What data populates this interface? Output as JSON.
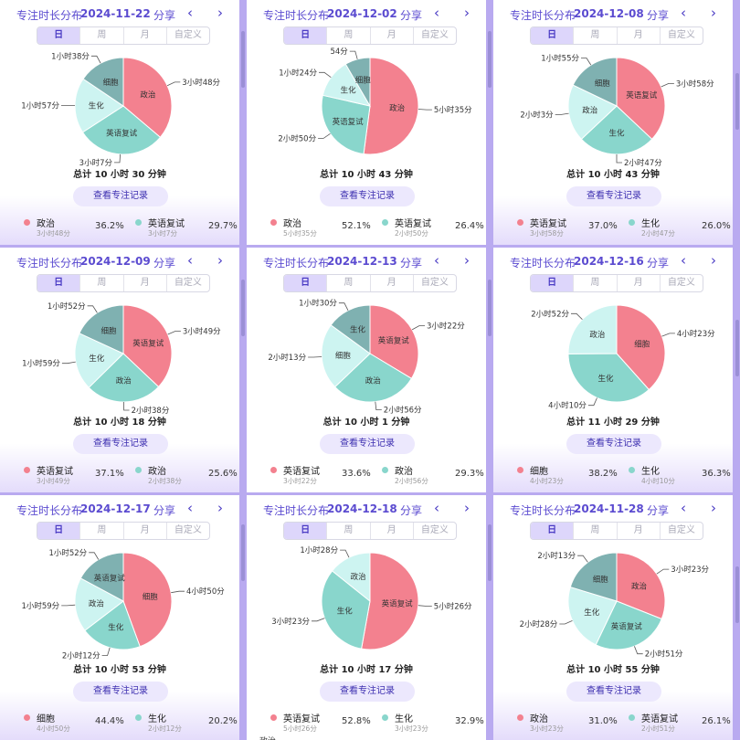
{
  "labels": {
    "title": "专注时长分布",
    "share": "分享",
    "prev": "‹",
    "next": "›",
    "view_records": "查看专注记录"
  },
  "tabs": [
    "日",
    "周",
    "月",
    "自定义"
  ],
  "colors": {
    "红": "#f3818f",
    "青": "#89d6cc",
    "浅": "#cdf4f1",
    "深": "#7fb1b1",
    "accent": "#4a3bc4"
  },
  "panels": [
    {
      "date": "2024-11-22",
      "total": "总计 10 小时 30 分钟",
      "slices": [
        {
          "name": "政治",
          "duration": "3小时48分",
          "value": 228,
          "color": "红"
        },
        {
          "name": "英语复试",
          "duration": "3小时7分",
          "value": 187,
          "color": "青"
        },
        {
          "name": "生化",
          "duration": "1小时57分",
          "value": 117,
          "color": "浅"
        },
        {
          "name": "细胞",
          "duration": "1小时38分",
          "value": 98,
          "color": "深"
        }
      ],
      "legend": [
        {
          "name": "政治",
          "duration": "3小时48分",
          "percent": "36.2%",
          "color": "红"
        },
        {
          "name": "英语复试",
          "duration": "3小时7分",
          "percent": "29.7%",
          "color": "青"
        }
      ]
    },
    {
      "date": "2024-12-02",
      "total": "总计 10 小时 43 分钟",
      "slices": [
        {
          "name": "政治",
          "duration": "5小时35分",
          "value": 335,
          "color": "红"
        },
        {
          "name": "英语复试",
          "duration": "2小时50分",
          "value": 170,
          "color": "青"
        },
        {
          "name": "生化",
          "duration": "1小时24分",
          "value": 84,
          "color": "浅"
        },
        {
          "name": "细胞",
          "duration": "54分",
          "value": 54,
          "color": "深"
        }
      ],
      "legend": [
        {
          "name": "政治",
          "duration": "5小时35分",
          "percent": "52.1%",
          "color": "红"
        },
        {
          "name": "英语复试",
          "duration": "2小时50分",
          "percent": "26.4%",
          "color": "青"
        }
      ]
    },
    {
      "date": "2024-12-08",
      "total": "总计 10 小时 43 分钟",
      "slices": [
        {
          "name": "英语复试",
          "duration": "3小时58分",
          "value": 238,
          "color": "红"
        },
        {
          "name": "生化",
          "duration": "2小时47分",
          "value": 167,
          "color": "青"
        },
        {
          "name": "政治",
          "duration": "2小时3分",
          "value": 123,
          "color": "浅"
        },
        {
          "name": "细胞",
          "duration": "1小时55分",
          "value": 115,
          "color": "深"
        }
      ],
      "legend": [
        {
          "name": "英语复试",
          "duration": "3小时58分",
          "percent": "37.0%",
          "color": "红"
        },
        {
          "name": "生化",
          "duration": "2小时47分",
          "percent": "26.0%",
          "color": "青"
        }
      ]
    },
    {
      "date": "2024-12-09",
      "total": "总计 10 小时 18 分钟",
      "slices": [
        {
          "name": "英语复试",
          "duration": "3小时49分",
          "value": 229,
          "color": "红"
        },
        {
          "name": "政治",
          "duration": "2小时38分",
          "value": 158,
          "color": "青"
        },
        {
          "name": "生化",
          "duration": "1小时59分",
          "value": 119,
          "color": "浅"
        },
        {
          "name": "细胞",
          "duration": "1小时52分",
          "value": 112,
          "color": "深"
        }
      ],
      "legend": [
        {
          "name": "英语复试",
          "duration": "3小时49分",
          "percent": "37.1%",
          "color": "红"
        },
        {
          "name": "政治",
          "duration": "2小时38分",
          "percent": "25.6%",
          "color": "青"
        }
      ]
    },
    {
      "date": "2024-12-13",
      "total": "总计 10 小时 1 分钟",
      "slices": [
        {
          "name": "英语复试",
          "duration": "3小时22分",
          "value": 202,
          "color": "红"
        },
        {
          "name": "政治",
          "duration": "2小时56分",
          "value": 176,
          "color": "青"
        },
        {
          "name": "细胞",
          "duration": "2小时13分",
          "value": 133,
          "color": "浅"
        },
        {
          "name": "生化",
          "duration": "1小时30分",
          "value": 90,
          "color": "深"
        }
      ],
      "legend": [
        {
          "name": "英语复试",
          "duration": "3小时22分",
          "percent": "33.6%",
          "color": "红"
        },
        {
          "name": "政治",
          "duration": "2小时56分",
          "percent": "29.3%",
          "color": "青"
        }
      ]
    },
    {
      "date": "2024-12-16",
      "total": "总计 11 小时 29 分钟",
      "slices": [
        {
          "name": "细胞",
          "duration": "4小时23分",
          "value": 263,
          "color": "红"
        },
        {
          "name": "生化",
          "duration": "4小时10分",
          "value": 250,
          "color": "青"
        },
        {
          "name": "政治",
          "duration": "2小时52分",
          "value": 172,
          "color": "浅"
        }
      ],
      "legend": [
        {
          "name": "细胞",
          "duration": "4小时23分",
          "percent": "38.2%",
          "color": "红"
        },
        {
          "name": "生化",
          "duration": "4小时10分",
          "percent": "36.3%",
          "color": "青"
        }
      ]
    },
    {
      "date": "2024-12-17",
      "total": "总计 10 小时 53 分钟",
      "slices": [
        {
          "name": "细胞",
          "duration": "4小时50分",
          "value": 290,
          "color": "红"
        },
        {
          "name": "生化",
          "duration": "2小时12分",
          "value": 132,
          "color": "青"
        },
        {
          "name": "政治",
          "duration": "1小时59分",
          "value": 119,
          "color": "浅"
        },
        {
          "name": "英语复试",
          "duration": "1小时52分",
          "value": 112,
          "color": "深"
        }
      ],
      "legend": [
        {
          "name": "细胞",
          "duration": "4小时50分",
          "percent": "44.4%",
          "color": "红"
        },
        {
          "name": "生化",
          "duration": "2小时12分",
          "percent": "20.2%",
          "color": "青"
        }
      ]
    },
    {
      "date": "2024-12-18",
      "total": "总计 10 小时 17 分钟",
      "slices": [
        {
          "name": "英语复试",
          "duration": "5小时26分",
          "value": 326,
          "color": "红"
        },
        {
          "name": "生化",
          "duration": "3小时23分",
          "value": 203,
          "color": "青"
        },
        {
          "name": "政治",
          "duration": "1小时28分",
          "value": 88,
          "color": "浅"
        }
      ],
      "legend": [
        {
          "name": "英语复试",
          "duration": "5小时26分",
          "percent": "52.8%",
          "color": "红"
        },
        {
          "name": "生化",
          "duration": "3小时23分",
          "percent": "32.9%",
          "color": "青"
        }
      ],
      "peek": "政治"
    },
    {
      "date": "2024-11-28",
      "total": "总计 10 小时 55 分钟",
      "slices": [
        {
          "name": "政治",
          "duration": "3小时23分",
          "value": 203,
          "color": "红"
        },
        {
          "name": "英语复试",
          "duration": "2小时51分",
          "value": 171,
          "color": "青"
        },
        {
          "name": "生化",
          "duration": "2小时28分",
          "value": 148,
          "color": "浅"
        },
        {
          "name": "细胞",
          "duration": "2小时13分",
          "value": 133,
          "color": "深"
        }
      ],
      "legend": [
        {
          "name": "政治",
          "duration": "3小时23分",
          "percent": "31.0%",
          "color": "红"
        },
        {
          "name": "英语复试",
          "duration": "2小时51分",
          "percent": "26.1%",
          "color": "青"
        }
      ]
    }
  ]
}
